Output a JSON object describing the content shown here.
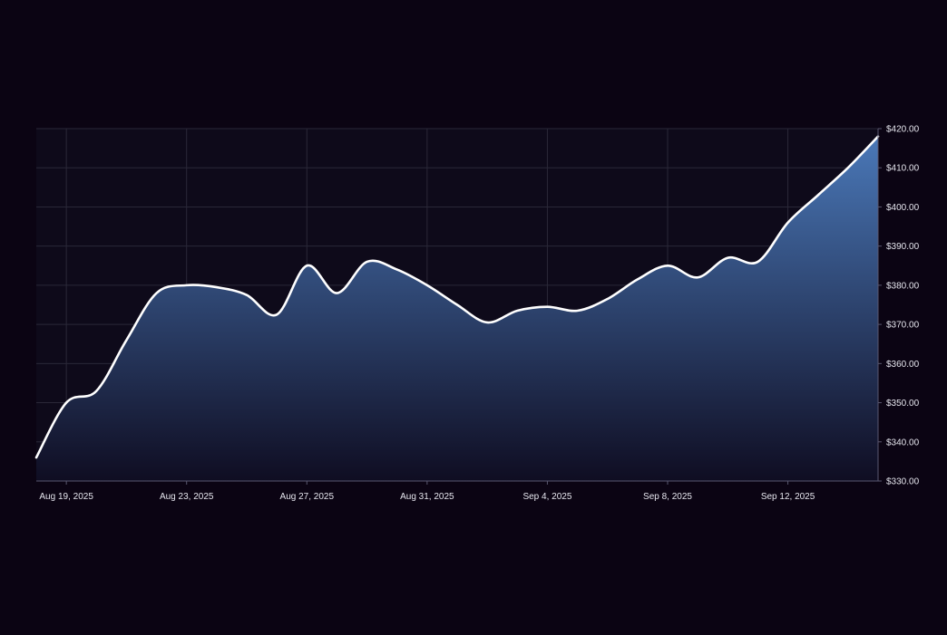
{
  "colors": {
    "page_background": "#0b0413",
    "plot_background": "#0e0a1a",
    "grid": "#2a2838",
    "line": "#ffffff",
    "area_top": "#4a78b8",
    "area_bottom": "#0f0d22",
    "text": "#e6e6ee"
  },
  "chart_data": {
    "type": "area",
    "title": "",
    "xlabel": "",
    "ylabel": "",
    "grid": true,
    "y_axis_side": "right",
    "ylim": [
      330,
      420
    ],
    "xlim": [
      "2025-08-18",
      "2025-09-15"
    ],
    "y_ticks": [
      330,
      340,
      350,
      360,
      370,
      380,
      390,
      400,
      410,
      420
    ],
    "y_tick_labels": [
      "$330.00",
      "$340.00",
      "$350.00",
      "$360.00",
      "$370.00",
      "$380.00",
      "$390.00",
      "$400.00",
      "$410.00",
      "$420.00"
    ],
    "x_ticks": [
      "2025-08-19",
      "2025-08-23",
      "2025-08-27",
      "2025-08-31",
      "2025-09-04",
      "2025-09-08",
      "2025-09-12"
    ],
    "x_tick_labels": [
      "Aug 19, 2025",
      "Aug 23, 2025",
      "Aug 27, 2025",
      "Aug 31, 2025",
      "Sep 4, 2025",
      "Sep 8, 2025",
      "Sep 12, 2025"
    ],
    "series": [
      {
        "points": [
          {
            "x": "2025-08-18",
            "y": 336
          },
          {
            "x": "2025-08-19",
            "y": 350
          },
          {
            "x": "2025-08-20",
            "y": 353
          },
          {
            "x": "2025-08-21",
            "y": 366
          },
          {
            "x": "2025-08-22",
            "y": 378
          },
          {
            "x": "2025-08-23",
            "y": 380
          },
          {
            "x": "2025-08-24",
            "y": 379.5
          },
          {
            "x": "2025-08-25",
            "y": 377.5
          },
          {
            "x": "2025-08-26",
            "y": 372.5
          },
          {
            "x": "2025-08-27",
            "y": 385
          },
          {
            "x": "2025-08-28",
            "y": 378
          },
          {
            "x": "2025-08-29",
            "y": 386
          },
          {
            "x": "2025-08-30",
            "y": 384
          },
          {
            "x": "2025-08-31",
            "y": 380
          },
          {
            "x": "2025-09-01",
            "y": 375
          },
          {
            "x": "2025-09-02",
            "y": 370.5
          },
          {
            "x": "2025-09-03",
            "y": 373.5
          },
          {
            "x": "2025-09-04",
            "y": 374.5
          },
          {
            "x": "2025-09-05",
            "y": 373.5
          },
          {
            "x": "2025-09-06",
            "y": 376.5
          },
          {
            "x": "2025-09-07",
            "y": 381.5
          },
          {
            "x": "2025-09-08",
            "y": 385
          },
          {
            "x": "2025-09-09",
            "y": 382
          },
          {
            "x": "2025-09-10",
            "y": 387
          },
          {
            "x": "2025-09-11",
            "y": 386
          },
          {
            "x": "2025-09-12",
            "y": 396
          },
          {
            "x": "2025-09-13",
            "y": 403
          },
          {
            "x": "2025-09-14",
            "y": 410
          },
          {
            "x": "2025-09-15",
            "y": 418
          }
        ]
      }
    ]
  }
}
